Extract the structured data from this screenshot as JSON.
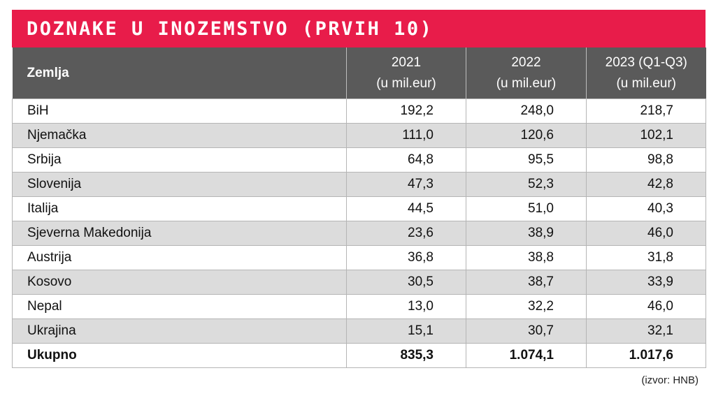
{
  "title": "DOZNAKE U INOZEMSTVO (PRVIH 10)",
  "colors": {
    "title_bg": "#e81c4a",
    "header_bg": "#5a5a5a",
    "row_alt_bg": "#dcdcdc",
    "row_bg": "#ffffff"
  },
  "table": {
    "headers": {
      "country": "Zemlja",
      "years": [
        {
          "line1": "2021",
          "line2": "(u mil.eur)"
        },
        {
          "line1": "2022",
          "line2": "(u mil.eur)"
        },
        {
          "line1": "2023 (Q1-Q3)",
          "line2": "(u mil.eur)"
        }
      ]
    },
    "rows": [
      {
        "country": "BiH",
        "values": [
          "192,2",
          "248,0",
          "218,7"
        ]
      },
      {
        "country": "Njemačka",
        "values": [
          "111,0",
          "120,6",
          "102,1"
        ]
      },
      {
        "country": "Srbija",
        "values": [
          "64,8",
          "95,5",
          "98,8"
        ]
      },
      {
        "country": "Slovenija",
        "values": [
          "47,3",
          "52,3",
          "42,8"
        ]
      },
      {
        "country": "Italija",
        "values": [
          "44,5",
          "51,0",
          "40,3"
        ]
      },
      {
        "country": "Sjeverna Makedonija",
        "values": [
          "23,6",
          "38,9",
          "46,0"
        ]
      },
      {
        "country": "Austrija",
        "values": [
          "36,8",
          "38,8",
          "31,8"
        ]
      },
      {
        "country": "Kosovo",
        "values": [
          "30,5",
          "38,7",
          "33,9"
        ]
      },
      {
        "country": "Nepal",
        "values": [
          "13,0",
          "32,2",
          "46,0"
        ]
      },
      {
        "country": "Ukrajina",
        "values": [
          "15,1",
          "30,7",
          "32,1"
        ]
      }
    ],
    "total": {
      "country": "Ukupno",
      "values": [
        "835,3",
        "1.074,1",
        "1.017,6"
      ]
    }
  },
  "source": "(izvor: HNB)"
}
